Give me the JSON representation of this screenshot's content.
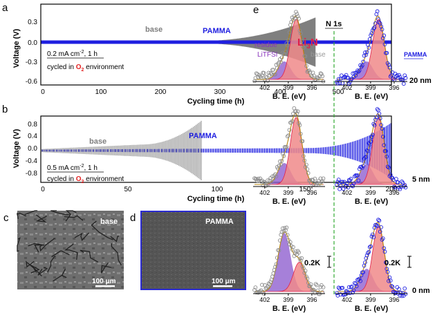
{
  "panel_letters": {
    "a": "a",
    "b": "b",
    "c": "c",
    "d": "d",
    "e": "e"
  },
  "colors": {
    "base": "#7f7f7f",
    "pamma": "#1f1fe0",
    "o2": "#e32222",
    "li3n_fill": "#f08a8a",
    "li3n_line": "#e0204a",
    "residue_fill": "#8855cc",
    "envelope": "#b8860b",
    "n1s_divider": "#33aa33",
    "scatter_base": "#8c8c8c"
  },
  "panel_a": {
    "ylabel": "Voltage (V)",
    "xlabel": "Cycling time (h)",
    "yticks": [
      "0.3",
      "0.0",
      "-0.3",
      "-0.6"
    ],
    "xticks": [
      "0",
      "100",
      "200",
      "300",
      "400",
      "500"
    ],
    "series_base": "base",
    "series_pamma": "PAMMA",
    "cond1_prefix": "0.2 mA cm",
    "cond1_sup": "-2",
    "cond1_suffix": ", 1 h",
    "cond2_prefix": "cycled in ",
    "cond2_o": "O",
    "cond2_sub": "2",
    "cond2_suffix": " environment"
  },
  "panel_b": {
    "ylabel": "Voltage (V)",
    "xlabel": "Cycling time (h)",
    "yticks": [
      "0.8",
      "0.4",
      "0.0",
      "-0.4",
      "-0.8"
    ],
    "xticks": [
      "0",
      "50",
      "100",
      "150",
      "200"
    ],
    "series_base": "base",
    "series_pamma": "PAMMA",
    "cond1_prefix": "0.5 mA cm",
    "cond1_sup": "-2",
    "cond1_suffix": ", 1 h",
    "cond2_prefix": "cycled in ",
    "cond2_o": "O",
    "cond2_sub": "2",
    "cond2_suffix": " environment"
  },
  "panel_c": {
    "label": "base",
    "scale": "100 μm"
  },
  "panel_d": {
    "label": "PAMMA",
    "scale": "100 μm"
  },
  "panel_e": {
    "n1s": "N 1s",
    "li3n_main": "Li",
    "li3n_sub": "3",
    "li3n_tail": "N",
    "residue": "residue",
    "litfsi": "LiTFSI",
    "col_base": "base",
    "col_pamma": "PAMMA",
    "xlabel": "B. E. (eV)",
    "xticks": [
      "402",
      "399",
      "396"
    ],
    "depths": [
      "20 nm",
      "5 nm",
      "0 nm"
    ],
    "scale": "0.2K"
  }
}
